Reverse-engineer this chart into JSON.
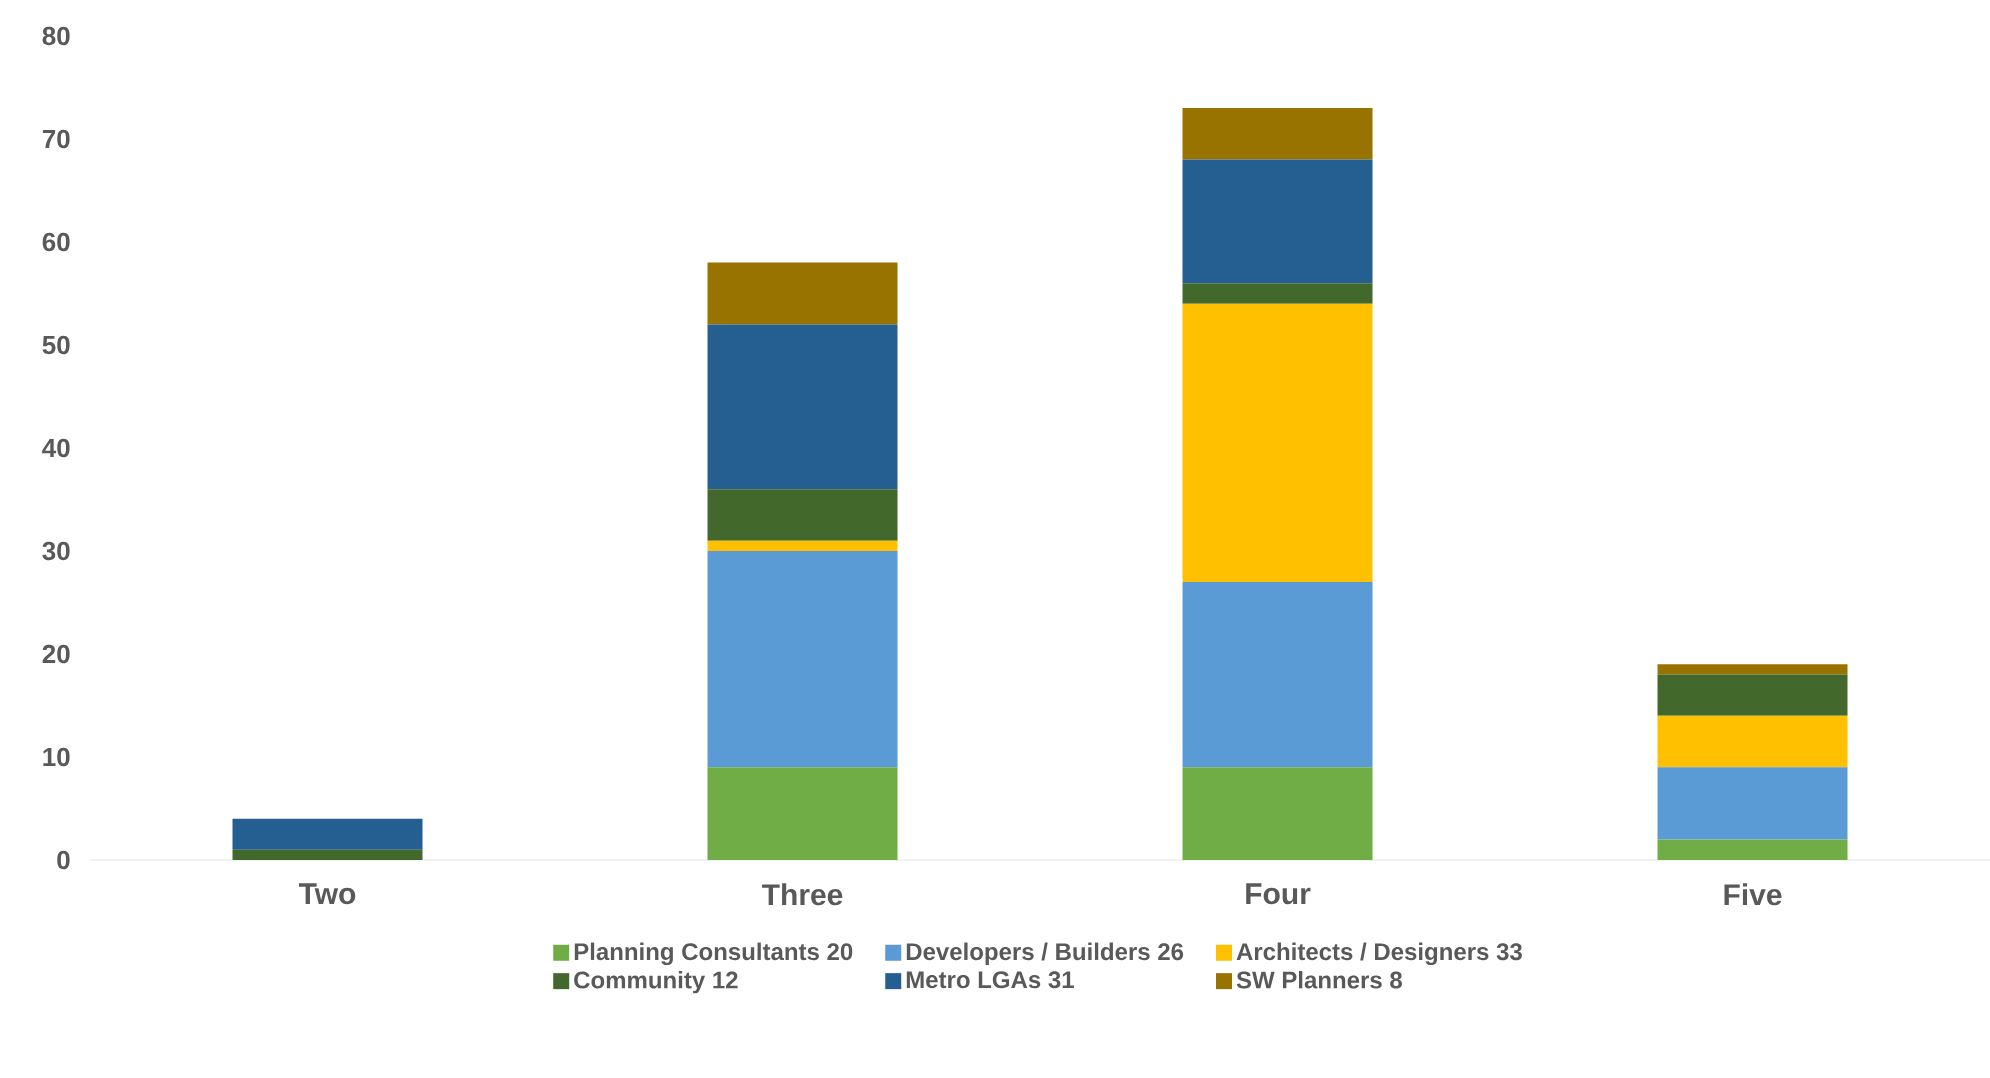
{
  "chart_data": {
    "type": "bar",
    "stacked": true,
    "categories": [
      "Two",
      "Three",
      "Four",
      "Five"
    ],
    "series": [
      {
        "name": "Planning Consultants 20",
        "color": "#70ad47",
        "values": [
          0,
          9,
          9,
          2
        ]
      },
      {
        "name": "Developers / Builders 26",
        "color": "#5b9bd5",
        "values": [
          0,
          21,
          18,
          7
        ]
      },
      {
        "name": "Architects / Designers 33",
        "color": "#ffc000",
        "values": [
          0,
          1,
          27,
          5
        ]
      },
      {
        "name": "Community 12",
        "color": "#43682b",
        "values": [
          1,
          5,
          2,
          4
        ]
      },
      {
        "name": "Metro LGAs 31",
        "color": "#255e91",
        "values": [
          3,
          16,
          12,
          0
        ]
      },
      {
        "name": "SW Planners 8",
        "color": "#997300",
        "values": [
          0,
          6,
          5,
          1
        ]
      }
    ],
    "ylim": [
      0,
      80
    ],
    "yticks": [
      0,
      10,
      20,
      30,
      40,
      50,
      60,
      70,
      80
    ],
    "legend": "bottom"
  }
}
